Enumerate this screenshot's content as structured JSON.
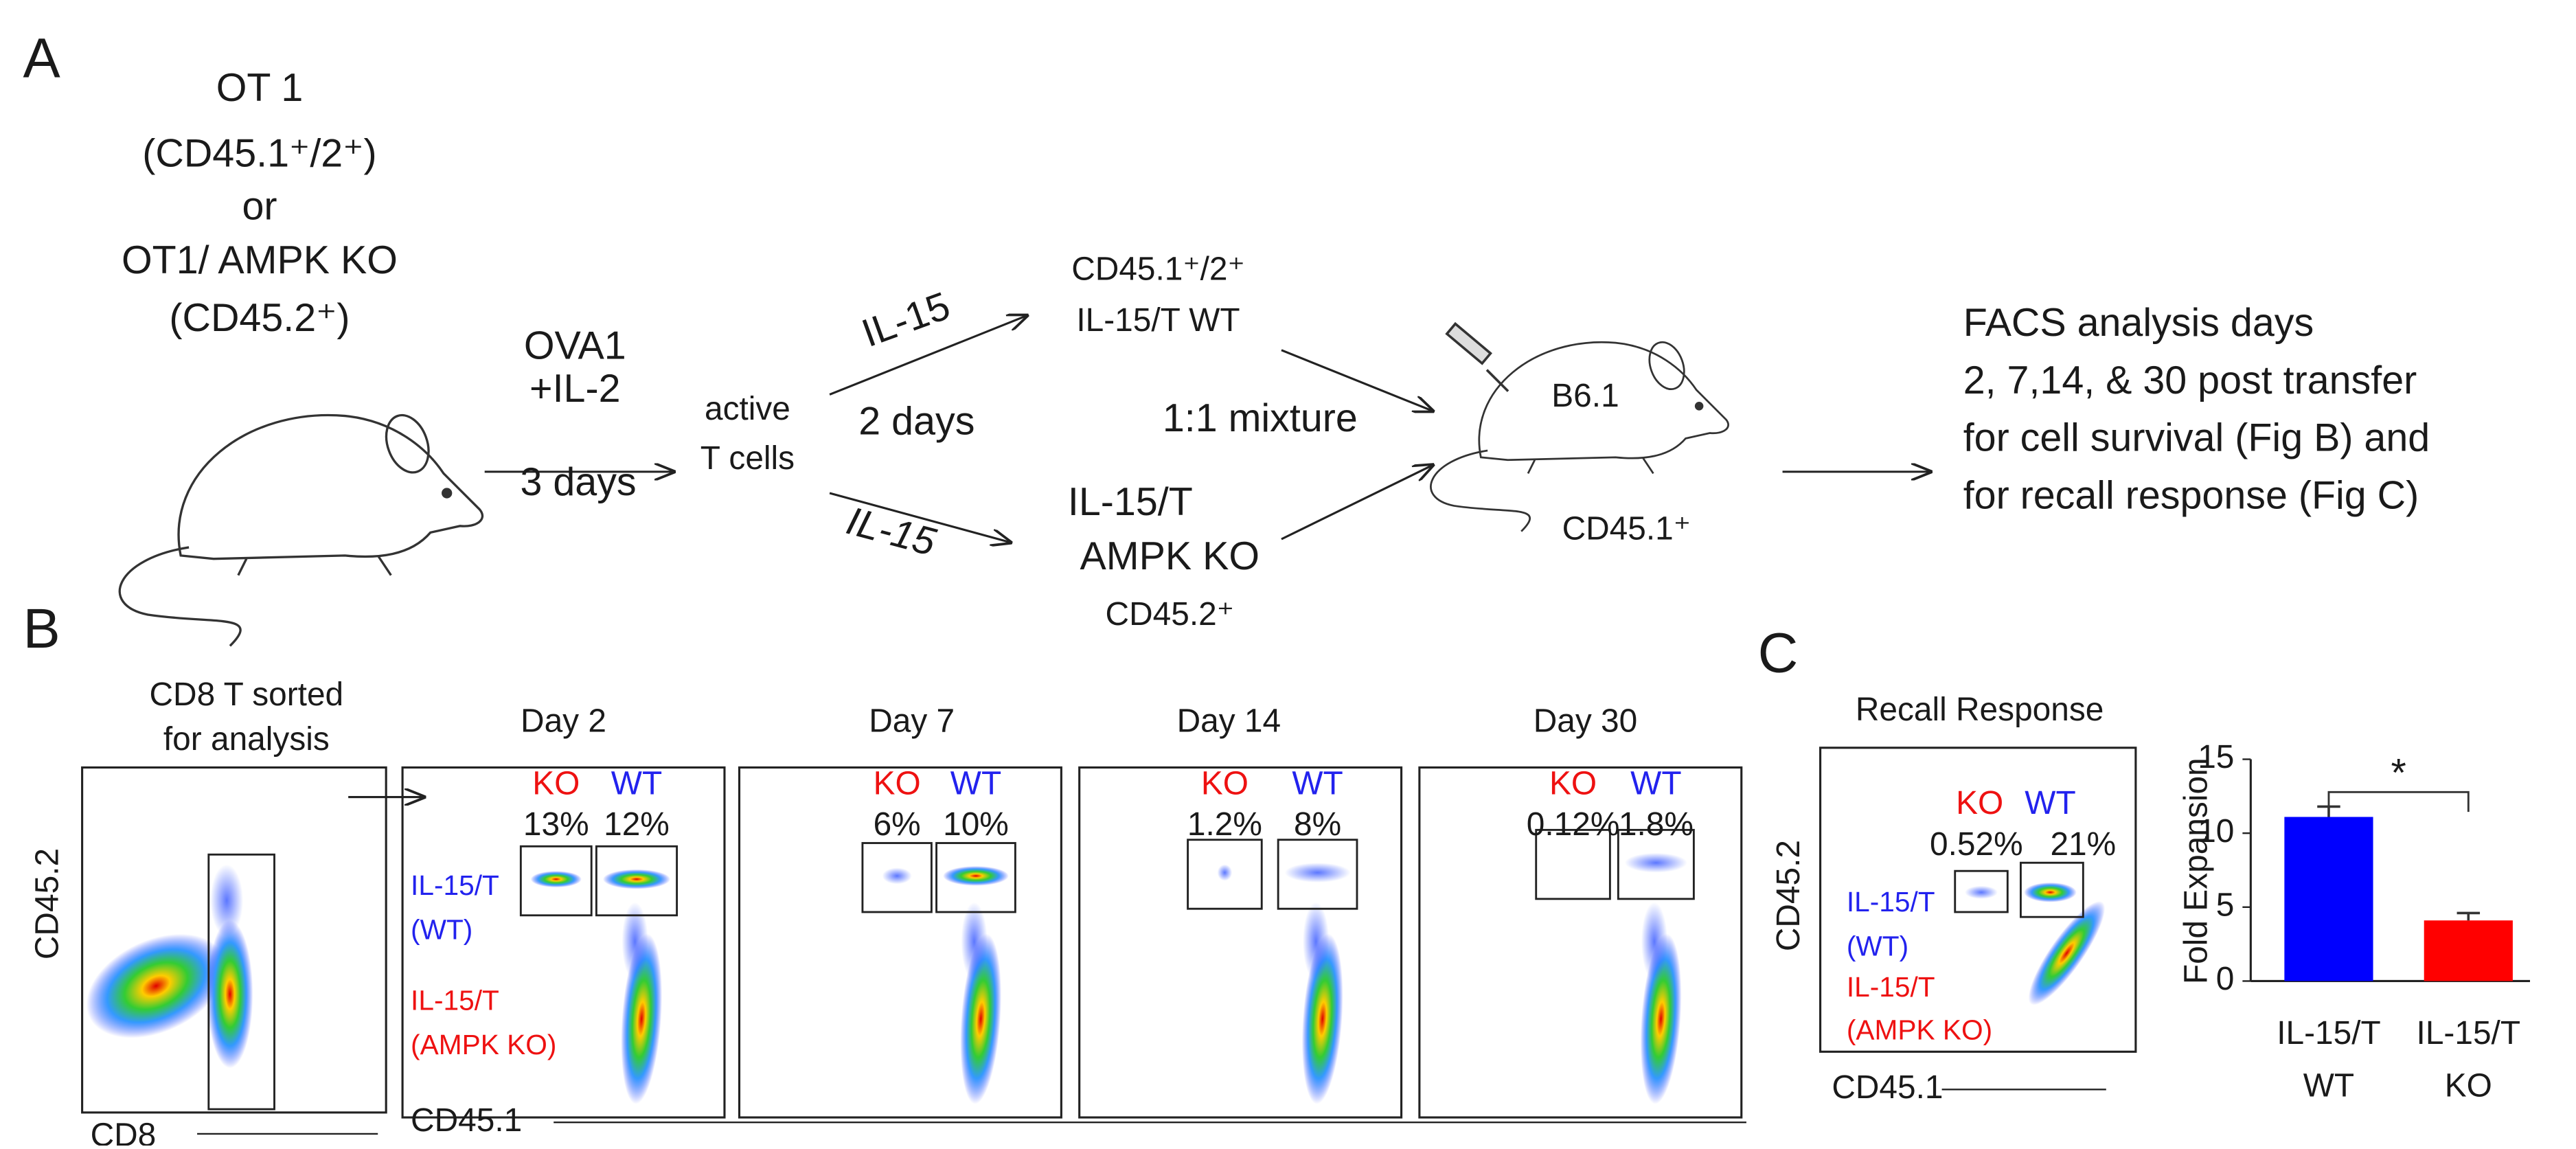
{
  "panel_a": {
    "label": "A",
    "donor_lines": [
      "OT 1",
      "(CD45.1⁺/2⁺)",
      "or",
      "OT1/ AMPK KO",
      "(CD45.2⁺)"
    ],
    "stimulation": [
      "OVA1",
      "+IL-2"
    ],
    "stimulation_time": "3 days",
    "activated": [
      "active",
      "T cells"
    ],
    "upper_arrow": "IL-15",
    "culture_time": "2 days",
    "lower_arrow": "IL-15",
    "upper_product": [
      "CD45.1⁺/2⁺",
      "IL-15/T  WT"
    ],
    "mixture": "1:1 mixture",
    "lower_product": [
      "IL-15/T",
      "AMPK KO",
      "CD45.2⁺"
    ],
    "recipient": "B6.1",
    "recipient_marker": "CD45.1⁺",
    "analysis": [
      "FACS analysis days",
      "2, 7,14, & 30 post transfer",
      "for cell survival (Fig B) and",
      "for recall response (Fig C)"
    ]
  },
  "panel_b": {
    "label": "B",
    "sort_title": [
      "CD8 T sorted",
      "for analysis"
    ],
    "sort_y": "CD45.2",
    "sort_x": "CD8",
    "x_label": "CD45.1",
    "legend": [
      "IL-15/T",
      "(WT)",
      "IL-15/T",
      "(AMPK KO)"
    ],
    "plots": [
      {
        "title": "Day 2",
        "ko": "KO",
        "wt": "WT",
        "ko_pct": "13%",
        "wt_pct": "12%"
      },
      {
        "title": "Day 7",
        "ko": "KO",
        "wt": "WT",
        "ko_pct": "6%",
        "wt_pct": "10%"
      },
      {
        "title": "Day 14",
        "ko": "KO",
        "wt": "WT",
        "ko_pct": "1.2%",
        "wt_pct": "8%"
      },
      {
        "title": "Day 30",
        "ko": "KO",
        "wt": "WT",
        "ko_pct": "0.12%",
        "wt_pct": "1.8%"
      }
    ]
  },
  "panel_c": {
    "label": "C",
    "title": "Recall Response",
    "ko": "KO",
    "wt": "WT",
    "ko_pct": "0.52%",
    "wt_pct": "21%",
    "y_label": "CD45.2",
    "x_label": "CD45.1",
    "legend": [
      "IL-15/T",
      "(WT)",
      "IL-15/T",
      "(AMPK KO)"
    ]
  },
  "chart_data": {
    "type": "bar",
    "ylabel": "Fold Expansion",
    "categories": [
      [
        "IL-15/T",
        "WT"
      ],
      [
        "IL-15/T",
        "KO"
      ]
    ],
    "values": [
      11.1,
      4.1
    ],
    "errors": [
      0.7,
      0.5
    ],
    "colors": [
      "#0000ff",
      "#ff0000"
    ],
    "ylim": [
      0,
      15
    ],
    "yticks": [
      0,
      5,
      10,
      15
    ],
    "annotation": "*"
  }
}
